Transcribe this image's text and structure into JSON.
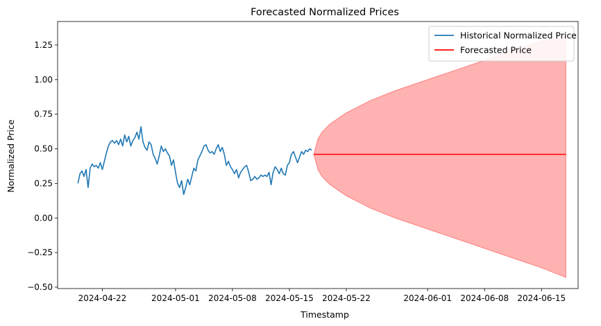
{
  "chart_data": {
    "type": "line",
    "title": "Forecasted Normalized Prices",
    "xlabel": "Timestamp",
    "ylabel": "Normalized Price",
    "x_axis": "date",
    "xlim": [
      "2024-04-16T12:00",
      "2024-06-19T12:00"
    ],
    "ylim": [
      -0.51,
      1.42
    ],
    "x_ticks": [
      "2024-04-22",
      "2024-05-01",
      "2024-05-08",
      "2024-05-15",
      "2024-05-22",
      "2024-06-01",
      "2024-06-08",
      "2024-06-15"
    ],
    "y_ticks": [
      -0.5,
      -0.25,
      0.0,
      0.25,
      0.5,
      0.75,
      1.0,
      1.25
    ],
    "y_tick_labels": [
      "−0.50",
      "−0.25",
      "0.00",
      "0.25",
      "0.50",
      "0.75",
      "1.00",
      "1.25"
    ],
    "grid": false,
    "legend_position": "top-right",
    "legend": [
      {
        "label": "Historical Normalized Price",
        "color": "#1f77b4"
      },
      {
        "label": "Forecasted Price",
        "color": "#ff0000"
      }
    ],
    "series": [
      {
        "name": "Historical Normalized Price",
        "color": "#1f77b4",
        "points": [
          [
            "2024-04-19T00:00",
            0.25
          ],
          [
            "2024-04-19T06:00",
            0.32
          ],
          [
            "2024-04-19T12:00",
            0.34
          ],
          [
            "2024-04-19T18:00",
            0.3
          ],
          [
            "2024-04-20T00:00",
            0.35
          ],
          [
            "2024-04-20T06:00",
            0.22
          ],
          [
            "2024-04-20T12:00",
            0.36
          ],
          [
            "2024-04-20T18:00",
            0.39
          ],
          [
            "2024-04-21T00:00",
            0.37
          ],
          [
            "2024-04-21T06:00",
            0.38
          ],
          [
            "2024-04-21T12:00",
            0.36
          ],
          [
            "2024-04-21T18:00",
            0.4
          ],
          [
            "2024-04-22T00:00",
            0.35
          ],
          [
            "2024-04-22T06:00",
            0.41
          ],
          [
            "2024-04-22T12:00",
            0.47
          ],
          [
            "2024-04-22T18:00",
            0.52
          ],
          [
            "2024-04-23T00:00",
            0.55
          ],
          [
            "2024-04-23T06:00",
            0.56
          ],
          [
            "2024-04-23T12:00",
            0.54
          ],
          [
            "2024-04-23T18:00",
            0.56
          ],
          [
            "2024-04-24T00:00",
            0.53
          ],
          [
            "2024-04-24T06:00",
            0.57
          ],
          [
            "2024-04-24T12:00",
            0.52
          ],
          [
            "2024-04-24T18:00",
            0.6
          ],
          [
            "2024-04-25T00:00",
            0.55
          ],
          [
            "2024-04-25T06:00",
            0.59
          ],
          [
            "2024-04-25T12:00",
            0.52
          ],
          [
            "2024-04-25T18:00",
            0.56
          ],
          [
            "2024-04-26T00:00",
            0.58
          ],
          [
            "2024-04-26T06:00",
            0.62
          ],
          [
            "2024-04-26T12:00",
            0.57
          ],
          [
            "2024-04-26T18:00",
            0.66
          ],
          [
            "2024-04-27T00:00",
            0.55
          ],
          [
            "2024-04-27T06:00",
            0.51
          ],
          [
            "2024-04-27T12:00",
            0.49
          ],
          [
            "2024-04-27T18:00",
            0.55
          ],
          [
            "2024-04-28T00:00",
            0.53
          ],
          [
            "2024-04-28T06:00",
            0.46
          ],
          [
            "2024-04-28T12:00",
            0.43
          ],
          [
            "2024-04-28T18:00",
            0.39
          ],
          [
            "2024-04-29T00:00",
            0.45
          ],
          [
            "2024-04-29T06:00",
            0.52
          ],
          [
            "2024-04-29T12:00",
            0.48
          ],
          [
            "2024-04-29T18:00",
            0.5
          ],
          [
            "2024-04-30T00:00",
            0.47
          ],
          [
            "2024-04-30T06:00",
            0.45
          ],
          [
            "2024-04-30T12:00",
            0.38
          ],
          [
            "2024-04-30T18:00",
            0.42
          ],
          [
            "2024-05-01T00:00",
            0.33
          ],
          [
            "2024-05-01T06:00",
            0.25
          ],
          [
            "2024-05-01T12:00",
            0.22
          ],
          [
            "2024-05-01T18:00",
            0.27
          ],
          [
            "2024-05-02T00:00",
            0.17
          ],
          [
            "2024-05-02T06:00",
            0.22
          ],
          [
            "2024-05-02T12:00",
            0.28
          ],
          [
            "2024-05-02T18:00",
            0.24
          ],
          [
            "2024-05-03T00:00",
            0.3
          ],
          [
            "2024-05-03T06:00",
            0.36
          ],
          [
            "2024-05-03T12:00",
            0.34
          ],
          [
            "2024-05-03T18:00",
            0.42
          ],
          [
            "2024-05-04T00:00",
            0.45
          ],
          [
            "2024-05-04T06:00",
            0.48
          ],
          [
            "2024-05-04T12:00",
            0.52
          ],
          [
            "2024-05-04T18:00",
            0.53
          ],
          [
            "2024-05-05T00:00",
            0.49
          ],
          [
            "2024-05-05T06:00",
            0.47
          ],
          [
            "2024-05-05T12:00",
            0.48
          ],
          [
            "2024-05-05T18:00",
            0.46
          ],
          [
            "2024-05-06T00:00",
            0.5
          ],
          [
            "2024-05-06T06:00",
            0.53
          ],
          [
            "2024-05-06T12:00",
            0.48
          ],
          [
            "2024-05-06T18:00",
            0.51
          ],
          [
            "2024-05-07T00:00",
            0.46
          ],
          [
            "2024-05-07T06:00",
            0.38
          ],
          [
            "2024-05-07T12:00",
            0.41
          ],
          [
            "2024-05-07T18:00",
            0.37
          ],
          [
            "2024-05-08T00:00",
            0.35
          ],
          [
            "2024-05-08T06:00",
            0.32
          ],
          [
            "2024-05-08T12:00",
            0.35
          ],
          [
            "2024-05-08T18:00",
            0.29
          ],
          [
            "2024-05-09T00:00",
            0.33
          ],
          [
            "2024-05-09T06:00",
            0.35
          ],
          [
            "2024-05-09T12:00",
            0.37
          ],
          [
            "2024-05-09T18:00",
            0.38
          ],
          [
            "2024-05-10T00:00",
            0.33
          ],
          [
            "2024-05-10T06:00",
            0.27
          ],
          [
            "2024-05-10T12:00",
            0.28
          ],
          [
            "2024-05-10T18:00",
            0.3
          ],
          [
            "2024-05-11T00:00",
            0.28
          ],
          [
            "2024-05-11T06:00",
            0.29
          ],
          [
            "2024-05-11T12:00",
            0.31
          ],
          [
            "2024-05-11T18:00",
            0.3
          ],
          [
            "2024-05-12T00:00",
            0.31
          ],
          [
            "2024-05-12T06:00",
            0.3
          ],
          [
            "2024-05-12T12:00",
            0.33
          ],
          [
            "2024-05-12T18:00",
            0.24
          ],
          [
            "2024-05-13T00:00",
            0.33
          ],
          [
            "2024-05-13T06:00",
            0.37
          ],
          [
            "2024-05-13T12:00",
            0.35
          ],
          [
            "2024-05-13T18:00",
            0.32
          ],
          [
            "2024-05-14T00:00",
            0.36
          ],
          [
            "2024-05-14T06:00",
            0.32
          ],
          [
            "2024-05-14T12:00",
            0.31
          ],
          [
            "2024-05-14T18:00",
            0.38
          ],
          [
            "2024-05-15T00:00",
            0.4
          ],
          [
            "2024-05-15T06:00",
            0.46
          ],
          [
            "2024-05-15T12:00",
            0.48
          ],
          [
            "2024-05-15T18:00",
            0.44
          ],
          [
            "2024-05-16T00:00",
            0.4
          ],
          [
            "2024-05-16T06:00",
            0.44
          ],
          [
            "2024-05-16T12:00",
            0.48
          ],
          [
            "2024-05-16T18:00",
            0.46
          ],
          [
            "2024-05-17T00:00",
            0.49
          ],
          [
            "2024-05-17T06:00",
            0.48
          ],
          [
            "2024-05-17T12:00",
            0.5
          ],
          [
            "2024-05-17T18:00",
            0.49
          ]
        ]
      },
      {
        "name": "Forecasted Price",
        "color": "#ff0000",
        "points": [
          [
            "2024-05-18T00:00",
            0.46
          ],
          [
            "2024-06-18T00:00",
            0.46
          ]
        ]
      }
    ],
    "confidence_band": {
      "color": "#ff0000",
      "opacity": 0.3,
      "points": [
        [
          "2024-05-18T00:00",
          0.46,
          0.46
        ],
        [
          "2024-05-18T12:00",
          0.35,
          0.57
        ],
        [
          "2024-05-19T00:00",
          0.3,
          0.62
        ],
        [
          "2024-05-20T00:00",
          0.24,
          0.68
        ],
        [
          "2024-05-22T00:00",
          0.16,
          0.76
        ],
        [
          "2024-05-25T00:00",
          0.07,
          0.85
        ],
        [
          "2024-05-28T00:00",
          0.0,
          0.92
        ],
        [
          "2024-06-01T00:00",
          -0.08,
          1.0
        ],
        [
          "2024-06-04T00:00",
          -0.14,
          1.06
        ],
        [
          "2024-06-08T00:00",
          -0.22,
          1.14
        ],
        [
          "2024-06-11T00:00",
          -0.28,
          1.2
        ],
        [
          "2024-06-15T00:00",
          -0.36,
          1.28
        ],
        [
          "2024-06-18T00:00",
          -0.43,
          1.31
        ]
      ]
    }
  }
}
